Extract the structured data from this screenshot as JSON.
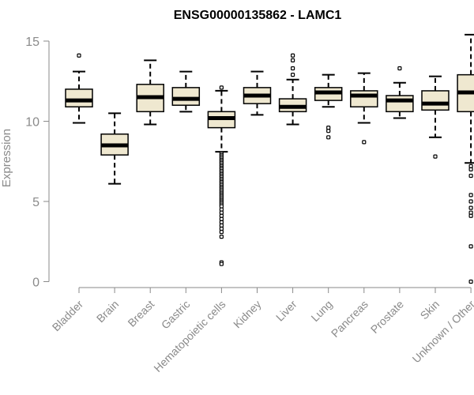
{
  "chart_data": {
    "type": "boxplot",
    "title": "ENSG00000135862 - LAMC1",
    "xlabel": "",
    "ylabel": "Expression",
    "ylim": [
      0,
      15.5
    ],
    "yticks": [
      0,
      5,
      10,
      15
    ],
    "grid": false,
    "legend": "none",
    "colors": {
      "box_fill": "#efe8d0",
      "box_stroke": "#000000",
      "axis": "#8a8a8a"
    },
    "categories": [
      "Bladder",
      "Brain",
      "Breast",
      "Gastric",
      "Hematopoietic cells",
      "Kidney",
      "Liver",
      "Lung",
      "Pancreas",
      "Prostate",
      "Skin",
      "Unknown / Other"
    ],
    "boxes": [
      {
        "category": "Bladder",
        "whisker_low": 9.9,
        "q1": 10.9,
        "median": 11.3,
        "q3": 12.0,
        "whisker_high": 13.1,
        "outliers": [
          14.1
        ]
      },
      {
        "category": "Brain",
        "whisker_low": 6.1,
        "q1": 7.9,
        "median": 8.5,
        "q3": 9.2,
        "whisker_high": 10.5,
        "outliers": []
      },
      {
        "category": "Breast",
        "whisker_low": 9.8,
        "q1": 10.6,
        "median": 11.5,
        "q3": 12.3,
        "whisker_high": 13.8,
        "outliers": []
      },
      {
        "category": "Gastric",
        "whisker_low": 10.6,
        "q1": 11.0,
        "median": 11.4,
        "q3": 12.1,
        "whisker_high": 13.1,
        "outliers": []
      },
      {
        "category": "Hematopoietic cells",
        "whisker_low": 8.1,
        "q1": 9.6,
        "median": 10.2,
        "q3": 10.6,
        "whisker_high": 11.9,
        "outliers": [
          12.1,
          8.0,
          7.9,
          7.8,
          7.7,
          7.6,
          7.5,
          7.4,
          7.3,
          7.2,
          7.1,
          7.0,
          6.9,
          6.8,
          6.7,
          6.6,
          6.5,
          6.4,
          6.3,
          6.2,
          6.1,
          6.0,
          5.9,
          5.8,
          5.7,
          5.6,
          5.5,
          5.4,
          5.3,
          5.2,
          5.1,
          5.0,
          4.9,
          4.8,
          4.7,
          4.5,
          4.3,
          4.1,
          3.9,
          3.7,
          3.5,
          3.3,
          3.1,
          2.8,
          1.2,
          1.1
        ]
      },
      {
        "category": "Kidney",
        "whisker_low": 10.4,
        "q1": 11.1,
        "median": 11.6,
        "q3": 12.1,
        "whisker_high": 13.1,
        "outliers": []
      },
      {
        "category": "Liver",
        "whisker_low": 9.8,
        "q1": 10.6,
        "median": 10.9,
        "q3": 11.4,
        "whisker_high": 12.6,
        "outliers": [
          14.1,
          13.8,
          13.3,
          12.9
        ]
      },
      {
        "category": "Lung",
        "whisker_low": 10.9,
        "q1": 11.3,
        "median": 11.8,
        "q3": 12.1,
        "whisker_high": 12.9,
        "outliers": [
          9.6,
          9.4,
          9.0
        ]
      },
      {
        "category": "Pancreas",
        "whisker_low": 9.9,
        "q1": 10.9,
        "median": 11.6,
        "q3": 11.9,
        "whisker_high": 13.0,
        "outliers": [
          8.7
        ]
      },
      {
        "category": "Prostate",
        "whisker_low": 10.2,
        "q1": 10.6,
        "median": 11.3,
        "q3": 11.6,
        "whisker_high": 12.4,
        "outliers": [
          13.3
        ]
      },
      {
        "category": "Skin",
        "whisker_low": 9.0,
        "q1": 10.7,
        "median": 11.1,
        "q3": 11.9,
        "whisker_high": 12.8,
        "outliers": [
          7.8
        ]
      },
      {
        "category": "Unknown / Other",
        "whisker_low": 7.4,
        "q1": 10.6,
        "median": 11.8,
        "q3": 12.9,
        "whisker_high": 15.4,
        "outliers": [
          7.2,
          7.0,
          6.6,
          5.4,
          5.0,
          4.6,
          4.3,
          4.1,
          2.2,
          0.0
        ]
      }
    ]
  }
}
